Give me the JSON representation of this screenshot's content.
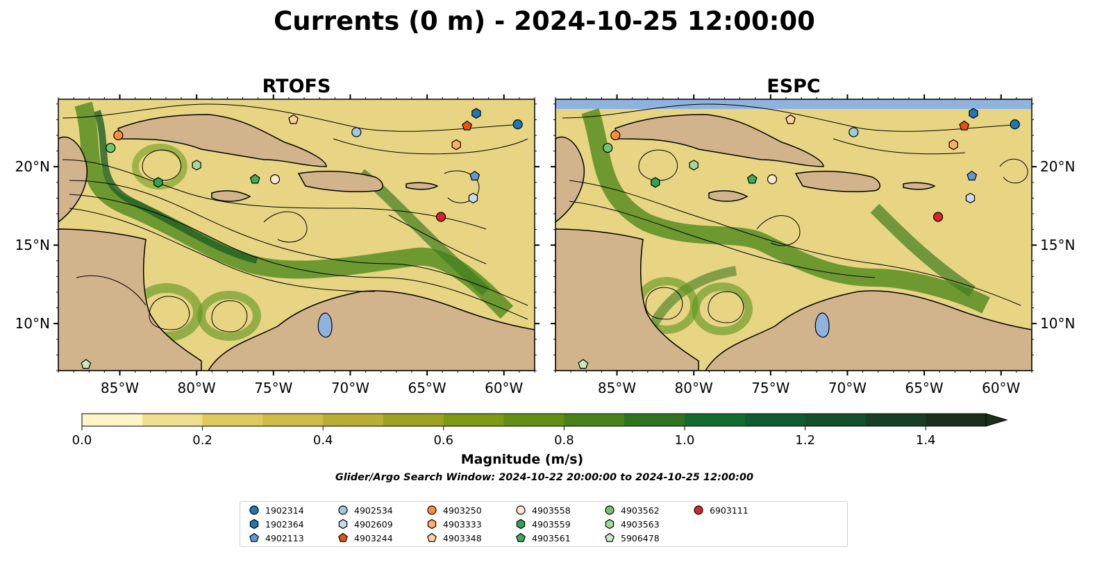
{
  "figure": {
    "title": "Currents (0 m) - 2024-10-25 12:00:00",
    "panels": [
      {
        "title": "RTOFS"
      },
      {
        "title": "ESPC"
      }
    ],
    "lon_ticks": [
      "85°W",
      "80°W",
      "75°W",
      "70°W",
      "65°W",
      "60°W"
    ],
    "lat_ticks": [
      "20°N",
      "15°N",
      "10°N"
    ],
    "colorbar": {
      "label": "Magnitude (m/s)",
      "ticks": [
        "0.0",
        "0.2",
        "0.4",
        "0.6",
        "0.8",
        "1.0",
        "1.2",
        "1.4"
      ],
      "colors": [
        "#fdf5c5",
        "#f0e08e",
        "#dfc95c",
        "#cfbb47",
        "#b9ae33",
        "#9aa21f",
        "#7d9a13",
        "#628e12",
        "#48821a",
        "#2f7320",
        "#136b2f",
        "#0e5c2f",
        "#13502b",
        "#183f25",
        "#1b301c"
      ]
    },
    "subtitle": "Glider/Argo Search Window: 2024-10-22 20:00:00 to 2024-10-25 12:00:00"
  },
  "map_extent": {
    "lon": [
      -89,
      -58
    ],
    "lat": [
      7,
      24.3
    ]
  },
  "colors": {
    "land": "#d2b48c",
    "water_low": "#fdf5c5",
    "water_high": "#1b301c",
    "lake": "#8fb3e0",
    "streamline": "#000000"
  },
  "legend": [
    {
      "label": "1902314",
      "marker": "circle",
      "color": "#1f77b4"
    },
    {
      "label": "1902364",
      "marker": "hexagon",
      "color": "#1f77b4"
    },
    {
      "label": "4902113",
      "marker": "pentagon",
      "color": "#5b9bd5"
    },
    {
      "label": "4902534",
      "marker": "circle",
      "color": "#9ecae1"
    },
    {
      "label": "4902609",
      "marker": "hexagon",
      "color": "#c6dbef"
    },
    {
      "label": "4903244",
      "marker": "pentagon",
      "color": "#e6550d"
    },
    {
      "label": "4903250",
      "marker": "circle",
      "color": "#fd8d3c"
    },
    {
      "label": "4903333",
      "marker": "hexagon",
      "color": "#fdae6b"
    },
    {
      "label": "4903348",
      "marker": "pentagon",
      "color": "#fdd0a2"
    },
    {
      "label": "4903558",
      "marker": "circle",
      "color": "#fee6ce"
    },
    {
      "label": "4903559",
      "marker": "hexagon",
      "color": "#31a354"
    },
    {
      "label": "4903561",
      "marker": "pentagon",
      "color": "#41ab5d"
    },
    {
      "label": "4903562",
      "marker": "circle",
      "color": "#74c476"
    },
    {
      "label": "4903563",
      "marker": "hexagon",
      "color": "#a1d99b"
    },
    {
      "label": "5906478",
      "marker": "pentagon",
      "color": "#c7e9c0"
    },
    {
      "label": "6903111",
      "marker": "circle",
      "color": "#d62728"
    }
  ],
  "floats": [
    {
      "id": "1902314",
      "lon": -59.1,
      "lat": 22.7
    },
    {
      "id": "1902364",
      "lon": -61.8,
      "lat": 23.4
    },
    {
      "id": "4902113",
      "lon": -61.9,
      "lat": 19.4
    },
    {
      "id": "4902534",
      "lon": -69.6,
      "lat": 22.2
    },
    {
      "id": "4902609",
      "lon": -62.0,
      "lat": 18.0
    },
    {
      "id": "4903244",
      "lon": -62.4,
      "lat": 22.6
    },
    {
      "id": "4903250",
      "lon": -85.1,
      "lat": 22.0
    },
    {
      "id": "4903333",
      "lon": -63.1,
      "lat": 21.4
    },
    {
      "id": "4903348",
      "lon": -73.7,
      "lat": 23.0
    },
    {
      "id": "4903558",
      "lon": -74.9,
      "lat": 19.2
    },
    {
      "id": "4903559",
      "lon": -82.5,
      "lat": 19.0
    },
    {
      "id": "4903561",
      "lon": -76.2,
      "lat": 19.2
    },
    {
      "id": "4903562",
      "lon": -85.6,
      "lat": 21.2
    },
    {
      "id": "4903563",
      "lon": -80.0,
      "lat": 20.1
    },
    {
      "id": "5906478",
      "lon": -87.2,
      "lat": 7.4
    },
    {
      "id": "6903111",
      "lon": -64.1,
      "lat": 16.8
    }
  ]
}
